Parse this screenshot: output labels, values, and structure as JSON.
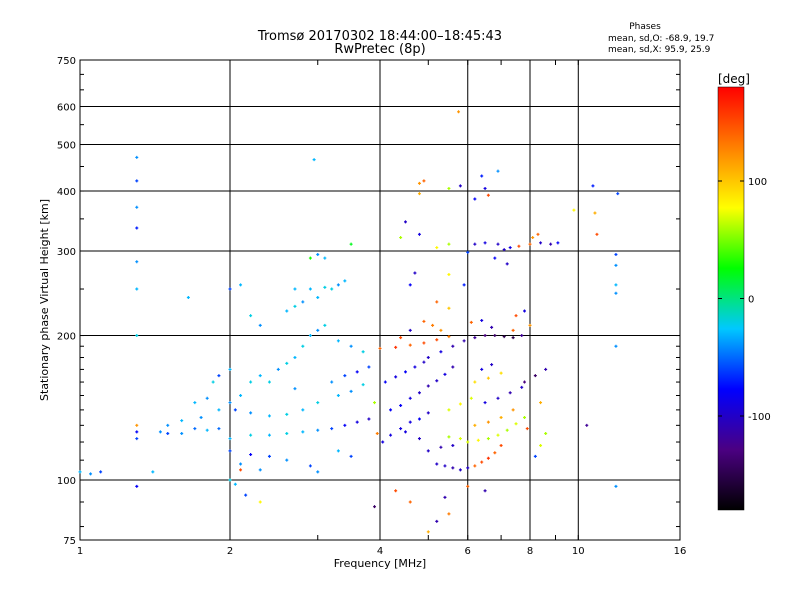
{
  "title": "Tromsø 20170302 18:44:00–18:45:43",
  "subtitle": "RwPretec (8p)",
  "stats": {
    "heading": "Phases",
    "line1": "mean, sd,O: -68.9, 19.7",
    "line2": "mean, sd,X:  95.9, 25.9"
  },
  "xlabel": "Frequency [MHz]",
  "ylabel": "Stationary phase Virtual Height [km]",
  "colorbar": {
    "label": "[deg]",
    "range": [
      -180,
      180
    ],
    "ticks": [
      "100",
      "0",
      "-100"
    ],
    "tick_values": [
      100,
      0,
      -100
    ],
    "colors": [
      "#000000",
      "#4b0082",
      "#0000ff",
      "#00c8ff",
      "#00ff00",
      "#ffff00",
      "#ff8000",
      "#ff0000"
    ]
  },
  "chart_data": {
    "type": "scatter",
    "xscale": "log",
    "yscale": "log",
    "xlim": [
      1,
      16
    ],
    "ylim": [
      75,
      750
    ],
    "xticks": [
      1,
      2,
      4,
      6,
      8,
      10,
      16
    ],
    "xtick_labels": [
      "1",
      "2",
      "4",
      "6",
      "8",
      "10",
      "16"
    ],
    "yticks": [
      75,
      100,
      200,
      300,
      400,
      500,
      600,
      750
    ],
    "ytick_labels": [
      "75",
      "100",
      "200",
      "300",
      "400",
      "500",
      "600",
      "750"
    ],
    "grid": true,
    "color_by": "phase (deg)",
    "points": [
      [
        1.0,
        104,
        -30
      ],
      [
        1.05,
        103,
        -40
      ],
      [
        1.1,
        104,
        -60
      ],
      [
        1.3,
        122,
        -60
      ],
      [
        1.3,
        126,
        -80
      ],
      [
        1.3,
        130,
        120
      ],
      [
        1.3,
        97,
        -80
      ],
      [
        1.3,
        470,
        -40
      ],
      [
        1.3,
        420,
        -60
      ],
      [
        1.3,
        370,
        -40
      ],
      [
        1.3,
        335,
        -70
      ],
      [
        1.3,
        285,
        -40
      ],
      [
        1.3,
        250,
        -30
      ],
      [
        1.3,
        200,
        -20
      ],
      [
        1.4,
        104,
        -30
      ],
      [
        1.45,
        126,
        -40
      ],
      [
        1.5,
        125,
        -60
      ],
      [
        1.6,
        125,
        -40
      ],
      [
        1.7,
        128,
        -50
      ],
      [
        1.8,
        127,
        -30
      ],
      [
        1.9,
        128,
        -50
      ],
      [
        1.5,
        130,
        -40
      ],
      [
        1.6,
        133,
        -30
      ],
      [
        1.75,
        135,
        -40
      ],
      [
        1.9,
        140,
        -30
      ],
      [
        2.0,
        145,
        -40
      ],
      [
        2.1,
        150,
        -30
      ],
      [
        2.2,
        160,
        -20
      ],
      [
        2.3,
        165,
        -30
      ],
      [
        1.85,
        160,
        -20
      ],
      [
        2.0,
        170,
        -30
      ],
      [
        1.7,
        145,
        -30
      ],
      [
        1.8,
        148,
        -40
      ],
      [
        2.05,
        140,
        -60
      ],
      [
        2.2,
        138,
        -40
      ],
      [
        2.4,
        136,
        -30
      ],
      [
        2.6,
        137,
        -20
      ],
      [
        2.8,
        140,
        -30
      ],
      [
        3.0,
        145,
        -20
      ],
      [
        2.0,
        122,
        -30
      ],
      [
        2.2,
        124,
        -20
      ],
      [
        2.4,
        124,
        -30
      ],
      [
        2.6,
        125,
        -20
      ],
      [
        2.8,
        126,
        -30
      ],
      [
        3.0,
        127,
        -40
      ],
      [
        3.2,
        128,
        -60
      ],
      [
        3.4,
        130,
        -80
      ],
      [
        3.6,
        132,
        -90
      ],
      [
        3.8,
        134,
        -100
      ],
      [
        2.0,
        115,
        -60
      ],
      [
        2.2,
        113,
        -80
      ],
      [
        2.4,
        112,
        -60
      ],
      [
        2.1,
        108,
        -40
      ],
      [
        2.0,
        100,
        -20
      ],
      [
        2.05,
        98,
        -30
      ],
      [
        2.3,
        105,
        -40
      ],
      [
        2.6,
        110,
        -40
      ],
      [
        2.9,
        107,
        -60
      ],
      [
        3.0,
        104,
        -40
      ],
      [
        3.3,
        115,
        -30
      ],
      [
        3.5,
        112,
        -60
      ],
      [
        2.5,
        170,
        -40
      ],
      [
        2.6,
        175,
        -20
      ],
      [
        2.7,
        180,
        -30
      ],
      [
        2.8,
        190,
        -20
      ],
      [
        2.9,
        200,
        -30
      ],
      [
        3.0,
        205,
        -40
      ],
      [
        3.1,
        210,
        -20
      ],
      [
        3.3,
        195,
        -30
      ],
      [
        3.5,
        190,
        -40
      ],
      [
        3.7,
        185,
        -20
      ],
      [
        2.6,
        225,
        -30
      ],
      [
        2.7,
        230,
        -20
      ],
      [
        2.8,
        235,
        -40
      ],
      [
        3.0,
        240,
        -30
      ],
      [
        3.2,
        250,
        -20
      ],
      [
        3.3,
        255,
        -40
      ],
      [
        2.7,
        250,
        -30
      ],
      [
        2.9,
        250,
        -30
      ],
      [
        3.1,
        252,
        -20
      ],
      [
        3.4,
        260,
        -30
      ],
      [
        2.9,
        290,
        30
      ],
      [
        3.0,
        295,
        -40
      ],
      [
        3.1,
        290,
        -30
      ],
      [
        2.95,
        465,
        -30
      ],
      [
        3.5,
        310,
        20
      ],
      [
        3.2,
        160,
        -40
      ],
      [
        3.4,
        165,
        -60
      ],
      [
        3.6,
        168,
        -80
      ],
      [
        3.8,
        172,
        -60
      ],
      [
        3.3,
        150,
        -30
      ],
      [
        3.5,
        153,
        -40
      ],
      [
        3.7,
        158,
        -20
      ],
      [
        2.1,
        255,
        -30
      ],
      [
        2.0,
        250,
        -60
      ],
      [
        2.2,
        220,
        -20
      ],
      [
        2.3,
        210,
        -40
      ],
      [
        1.65,
        240,
        -30
      ],
      [
        1.9,
        165,
        -60
      ],
      [
        2.4,
        160,
        -20
      ],
      [
        2.7,
        155,
        -40
      ],
      [
        3.9,
        145,
        60
      ],
      [
        3.95,
        125,
        130
      ],
      [
        4.05,
        120,
        -90
      ],
      [
        4.2,
        124,
        -90
      ],
      [
        4.4,
        128,
        -90
      ],
      [
        4.6,
        132,
        -90
      ],
      [
        4.8,
        134,
        -80
      ],
      [
        5.0,
        138,
        -100
      ],
      [
        4.2,
        140,
        -80
      ],
      [
        4.4,
        143,
        -80
      ],
      [
        4.6,
        148,
        -90
      ],
      [
        4.8,
        152,
        -100
      ],
      [
        5.0,
        157,
        -110
      ],
      [
        5.2,
        161,
        -100
      ],
      [
        5.4,
        166,
        -90
      ],
      [
        5.6,
        172,
        -110
      ],
      [
        4.1,
        160,
        -80
      ],
      [
        4.3,
        164,
        -90
      ],
      [
        4.5,
        168,
        -80
      ],
      [
        4.7,
        172,
        -90
      ],
      [
        4.9,
        176,
        -100
      ],
      [
        4.0,
        188,
        140
      ],
      [
        4.3,
        189,
        160
      ],
      [
        4.6,
        191,
        140
      ],
      [
        4.9,
        193,
        150
      ],
      [
        5.2,
        196,
        150
      ],
      [
        5.5,
        199,
        130
      ],
      [
        5.0,
        180,
        -100
      ],
      [
        5.3,
        185,
        -90
      ],
      [
        5.6,
        190,
        -110
      ],
      [
        5.9,
        195,
        -110
      ],
      [
        6.2,
        198,
        -120
      ],
      [
        6.5,
        200,
        -130
      ],
      [
        6.8,
        200,
        -140
      ],
      [
        7.1,
        199,
        -150
      ],
      [
        7.4,
        198,
        -150
      ],
      [
        5.2,
        108,
        -100
      ],
      [
        5.4,
        107,
        -100
      ],
      [
        5.6,
        106,
        -110
      ],
      [
        5.8,
        105,
        -100
      ],
      [
        6.0,
        106,
        -100
      ],
      [
        6.2,
        107,
        140
      ],
      [
        6.4,
        109,
        150
      ],
      [
        6.6,
        111,
        160
      ],
      [
        6.8,
        114,
        140
      ],
      [
        7.0,
        118,
        150
      ],
      [
        5.0,
        115,
        -100
      ],
      [
        5.3,
        117,
        -110
      ],
      [
        5.6,
        118,
        -100
      ],
      [
        6.0,
        120,
        70
      ],
      [
        6.3,
        121,
        80
      ],
      [
        6.6,
        122,
        60
      ],
      [
        6.9,
        124,
        70
      ],
      [
        7.2,
        127,
        60
      ],
      [
        7.5,
        131,
        70
      ],
      [
        7.8,
        135,
        60
      ],
      [
        5.5,
        123,
        60
      ],
      [
        5.8,
        122,
        70
      ],
      [
        4.8,
        122,
        -100
      ],
      [
        4.5,
        126,
        -90
      ],
      [
        6.2,
        130,
        110
      ],
      [
        6.6,
        132,
        120
      ],
      [
        7.0,
        135,
        110
      ],
      [
        7.4,
        140,
        120
      ],
      [
        6.5,
        145,
        -90
      ],
      [
        6.9,
        148,
        -100
      ],
      [
        7.3,
        152,
        -110
      ],
      [
        7.7,
        156,
        -100
      ],
      [
        6.2,
        160,
        90
      ],
      [
        6.6,
        163,
        100
      ],
      [
        7.0,
        167,
        90
      ],
      [
        5.5,
        140,
        70
      ],
      [
        5.8,
        144,
        80
      ],
      [
        6.1,
        148,
        70
      ],
      [
        6.4,
        170,
        -90
      ],
      [
        6.7,
        174,
        -100
      ],
      [
        7.8,
        160,
        -130
      ],
      [
        8.2,
        165,
        -140
      ],
      [
        8.6,
        170,
        -110
      ],
      [
        7.5,
        220,
        150
      ],
      [
        7.8,
        225,
        -90
      ],
      [
        8.0,
        210,
        120
      ],
      [
        7.3,
        305,
        -90
      ],
      [
        7.6,
        307,
        150
      ],
      [
        8.0,
        310,
        140
      ],
      [
        8.4,
        312,
        -100
      ],
      [
        8.8,
        310,
        -110
      ],
      [
        9.1,
        312,
        -80
      ],
      [
        8.1,
        320,
        120
      ],
      [
        8.3,
        325,
        140
      ],
      [
        6.2,
        310,
        -100
      ],
      [
        6.5,
        312,
        -90
      ],
      [
        6.9,
        310,
        -100
      ],
      [
        7.1,
        302,
        -100
      ],
      [
        6.8,
        290,
        -80
      ],
      [
        7.2,
        282,
        -100
      ],
      [
        5.2,
        305,
        80
      ],
      [
        5.5,
        310,
        60
      ],
      [
        4.8,
        415,
        120
      ],
      [
        4.8,
        395,
        110
      ],
      [
        4.9,
        420,
        140
      ],
      [
        5.5,
        405,
        60
      ],
      [
        5.8,
        410,
        -100
      ],
      [
        6.5,
        405,
        -90
      ],
      [
        6.6,
        392,
        150
      ],
      [
        6.2,
        385,
        -80
      ],
      [
        6.0,
        298,
        -60
      ],
      [
        5.5,
        268,
        80
      ],
      [
        5.9,
        255,
        -70
      ],
      [
        4.7,
        270,
        -100
      ],
      [
        4.6,
        255,
        -80
      ],
      [
        5.2,
        235,
        140
      ],
      [
        5.5,
        228,
        100
      ],
      [
        4.8,
        325,
        -90
      ],
      [
        4.5,
        345,
        -100
      ],
      [
        4.4,
        320,
        60
      ],
      [
        5.75,
        585,
        120
      ],
      [
        6.4,
        430,
        -70
      ],
      [
        6.9,
        440,
        -40
      ],
      [
        9.8,
        365,
        80
      ],
      [
        10.7,
        410,
        -70
      ],
      [
        10.8,
        360,
        110
      ],
      [
        10.9,
        325,
        150
      ],
      [
        12.0,
        395,
        -60
      ],
      [
        11.9,
        295,
        -60
      ],
      [
        11.9,
        280,
        -40
      ],
      [
        11.9,
        255,
        -30
      ],
      [
        11.9,
        245,
        -40
      ],
      [
        11.9,
        190,
        -40
      ],
      [
        11.9,
        97,
        -40
      ],
      [
        10.4,
        130,
        -120
      ],
      [
        8.6,
        125,
        60
      ],
      [
        8.4,
        118,
        70
      ],
      [
        8.2,
        112,
        -60
      ],
      [
        8.4,
        145,
        110
      ],
      [
        7.9,
        128,
        150
      ],
      [
        4.3,
        95,
        150
      ],
      [
        4.6,
        90,
        140
      ],
      [
        5.5,
        85,
        130
      ],
      [
        5.2,
        82,
        -110
      ],
      [
        5.0,
        78,
        110
      ],
      [
        5.4,
        92,
        -110
      ],
      [
        6.5,
        95,
        -110
      ],
      [
        6.0,
        97,
        140
      ],
      [
        3.9,
        88,
        -140
      ],
      [
        2.3,
        90,
        80
      ],
      [
        2.15,
        93,
        -60
      ],
      [
        2.1,
        105,
        150
      ],
      [
        4.9,
        214,
        140
      ],
      [
        5.1,
        210,
        130
      ],
      [
        5.3,
        205,
        120
      ],
      [
        4.6,
        205,
        -100
      ],
      [
        4.4,
        198,
        150
      ],
      [
        6.1,
        213,
        140
      ],
      [
        6.4,
        215,
        -90
      ],
      [
        6.7,
        208,
        -110
      ],
      [
        7.4,
        205,
        140
      ],
      [
        7.7,
        200,
        -120
      ]
    ]
  }
}
